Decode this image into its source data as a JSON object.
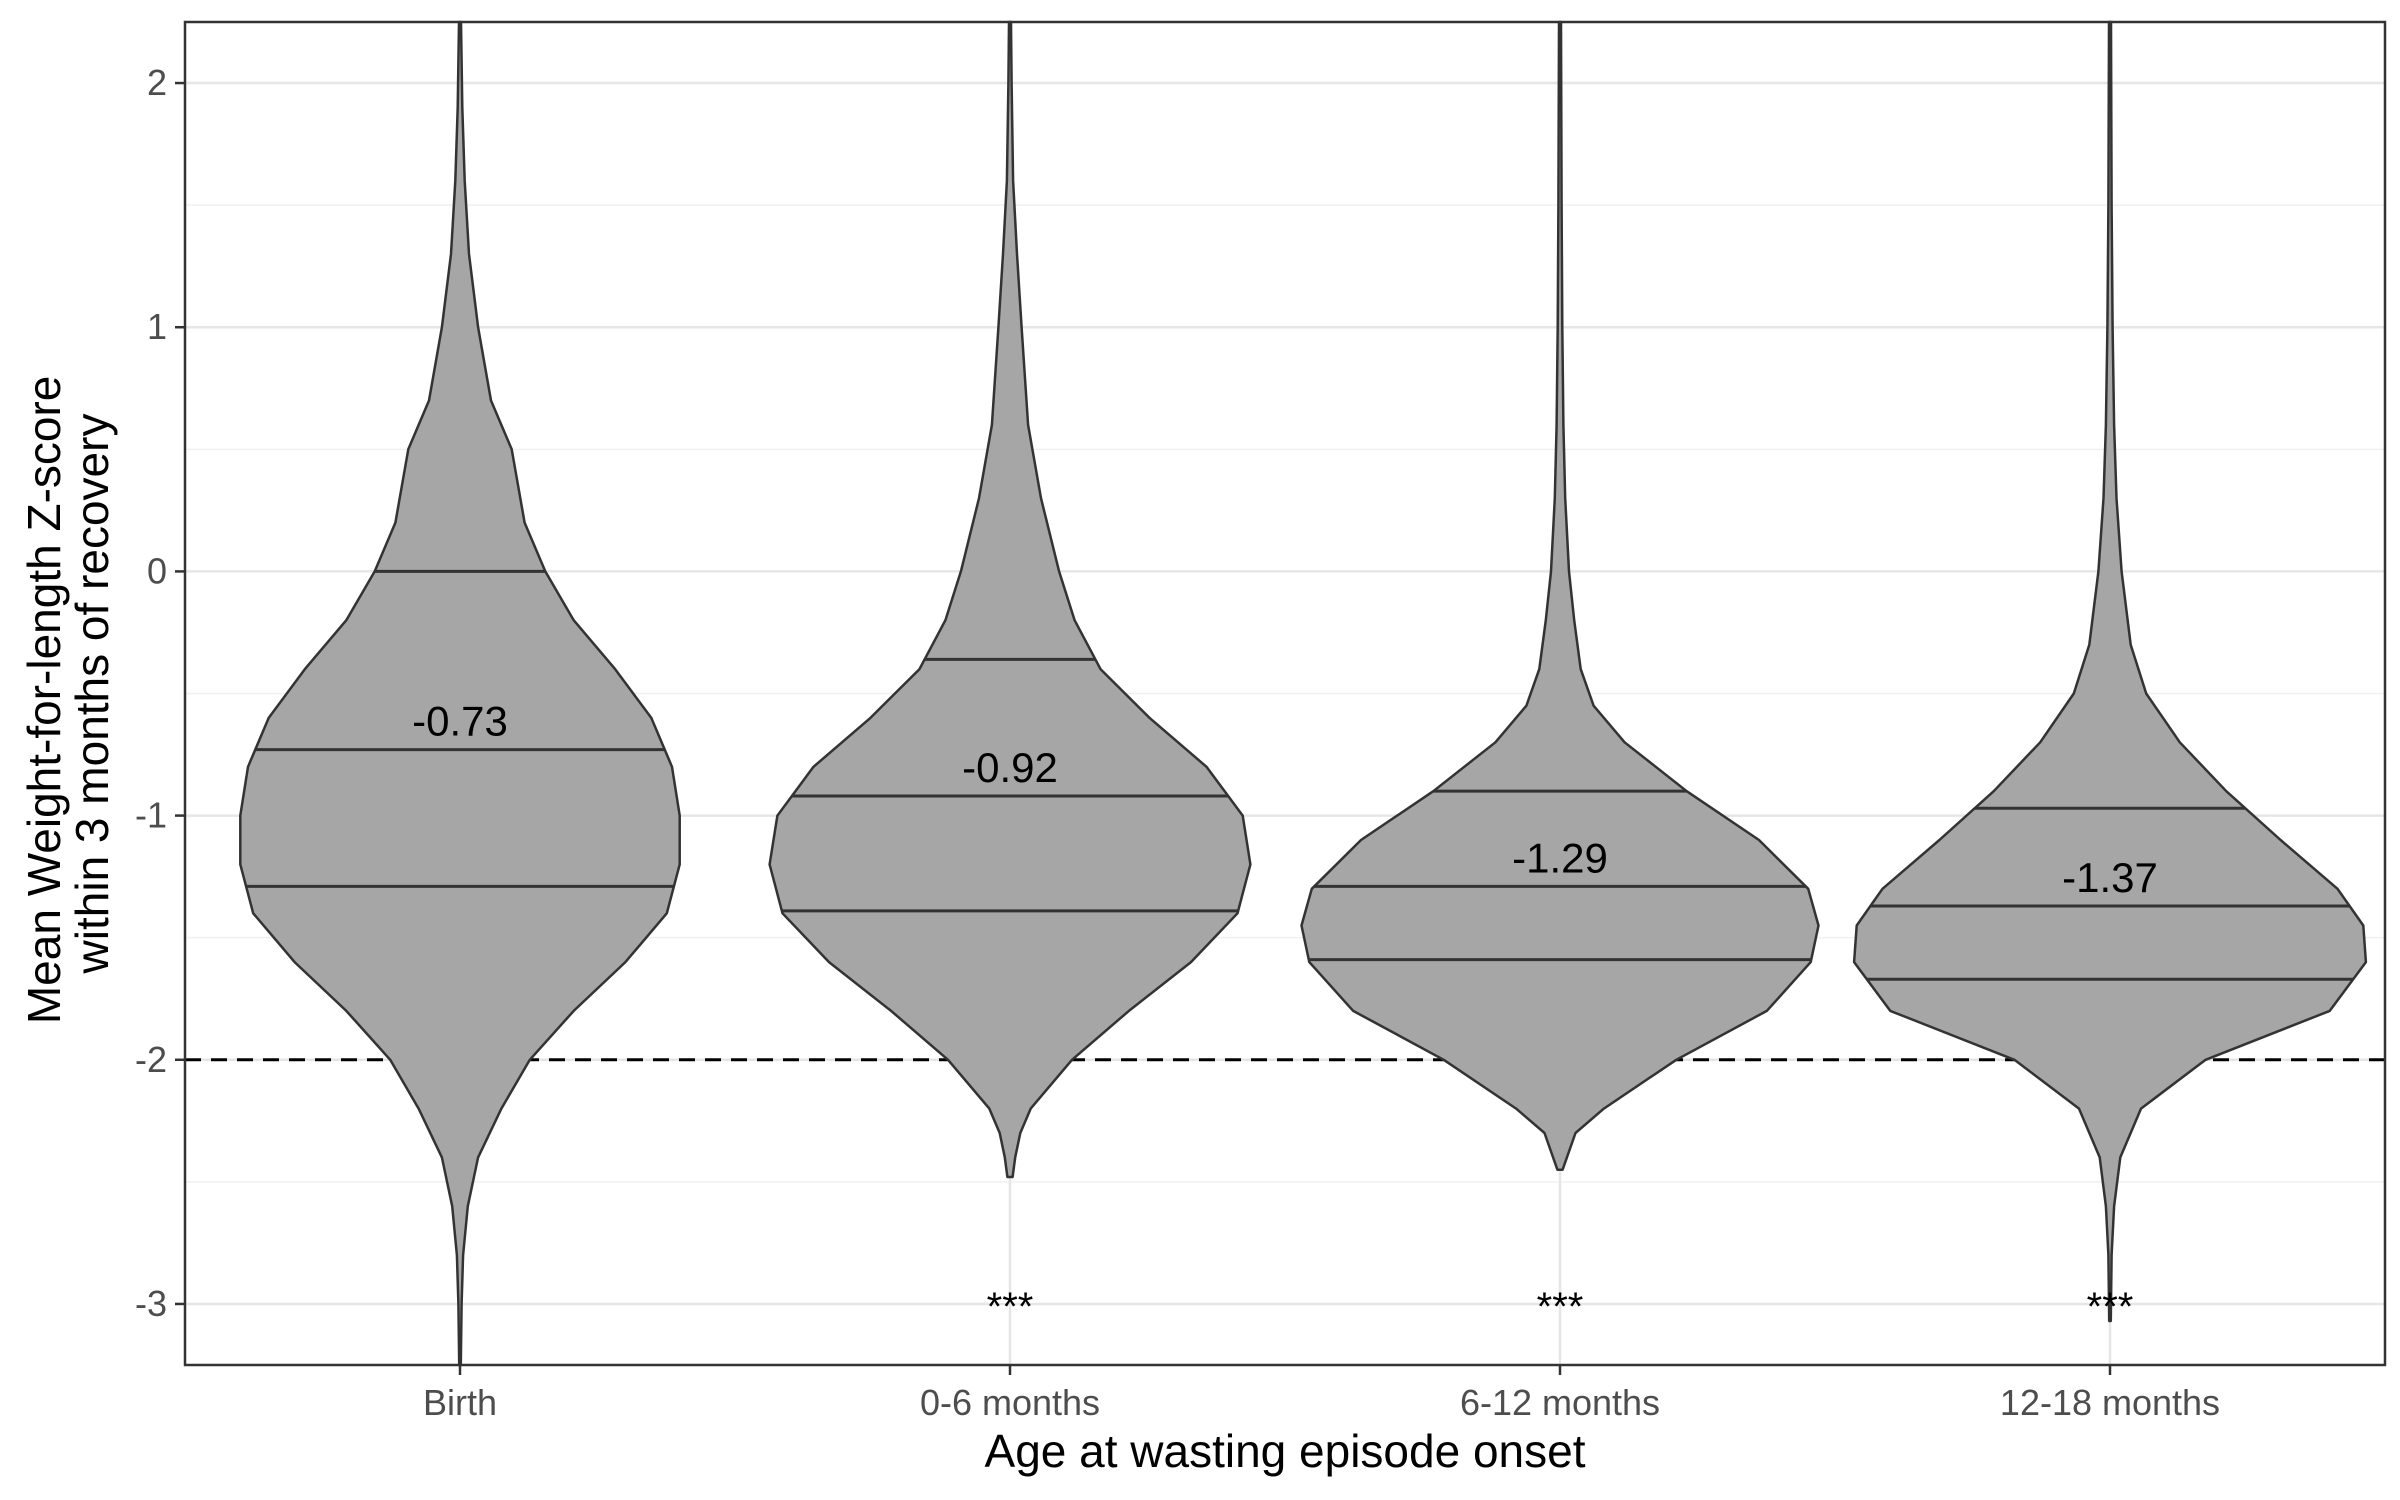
{
  "chart_data": {
    "type": "violin",
    "xlabel": "Age at wasting episode onset",
    "ylabel_lines": [
      "Mean Weight-for-length Z-score",
      "within 3 months of recovery"
    ],
    "ylim": [
      -3.25,
      2.25
    ],
    "yticks": [
      -3,
      -2,
      -1,
      0,
      1,
      2
    ],
    "ytick_labels": [
      "-3",
      "-2",
      "-1",
      "0",
      "1",
      "2"
    ],
    "reference_line": {
      "y": -2,
      "style": "dashed"
    },
    "grid": true,
    "fill_color": "#a6a6a6",
    "line_color": "#333333",
    "categories": [
      "Birth",
      "0-6 months",
      "6-12 months",
      "12-18 months"
    ],
    "groups": [
      {
        "category": "Birth",
        "quartiles": [
          -1.29,
          -0.73,
          0.0
        ],
        "median_label": "-0.73",
        "significance": "",
        "density": [
          [
            -3.25,
            0.003
          ],
          [
            -3.0,
            0.006
          ],
          [
            -2.8,
            0.012
          ],
          [
            -2.6,
            0.03
          ],
          [
            -2.4,
            0.07
          ],
          [
            -2.2,
            0.16
          ],
          [
            -2.0,
            0.27
          ],
          [
            -1.8,
            0.44
          ],
          [
            -1.6,
            0.64
          ],
          [
            -1.4,
            0.8
          ],
          [
            -1.2,
            0.85
          ],
          [
            -1.0,
            0.85
          ],
          [
            -0.8,
            0.82
          ],
          [
            -0.6,
            0.74
          ],
          [
            -0.4,
            0.6
          ],
          [
            -0.2,
            0.44
          ],
          [
            0.0,
            0.33
          ],
          [
            0.2,
            0.25
          ],
          [
            0.5,
            0.2
          ],
          [
            0.7,
            0.12
          ],
          [
            1.0,
            0.07
          ],
          [
            1.3,
            0.035
          ],
          [
            1.6,
            0.018
          ],
          [
            1.9,
            0.009
          ],
          [
            2.25,
            0.004
          ]
        ]
      },
      {
        "category": "0-6 months",
        "quartiles": [
          -1.39,
          -0.92,
          -0.36
        ],
        "median_label": "-0.92",
        "significance": "***",
        "density": [
          [
            -2.48,
            0.01
          ],
          [
            -2.4,
            0.02
          ],
          [
            -2.3,
            0.04
          ],
          [
            -2.2,
            0.08
          ],
          [
            -2.0,
            0.24
          ],
          [
            -1.8,
            0.46
          ],
          [
            -1.6,
            0.7
          ],
          [
            -1.4,
            0.88
          ],
          [
            -1.2,
            0.93
          ],
          [
            -1.0,
            0.9
          ],
          [
            -0.8,
            0.76
          ],
          [
            -0.6,
            0.54
          ],
          [
            -0.4,
            0.35
          ],
          [
            -0.2,
            0.25
          ],
          [
            0.0,
            0.19
          ],
          [
            0.3,
            0.12
          ],
          [
            0.6,
            0.07
          ],
          [
            1.0,
            0.045
          ],
          [
            1.3,
            0.027
          ],
          [
            1.6,
            0.012
          ],
          [
            2.0,
            0.006
          ],
          [
            2.25,
            0.004
          ]
        ]
      },
      {
        "category": "6-12 months",
        "quartiles": [
          -1.59,
          -1.29,
          -0.9
        ],
        "median_label": "-1.29",
        "significance": "***",
        "density": [
          [
            -2.45,
            0.01
          ],
          [
            -2.3,
            0.06
          ],
          [
            -2.2,
            0.17
          ],
          [
            -2.0,
            0.45
          ],
          [
            -1.8,
            0.8
          ],
          [
            -1.6,
            0.97
          ],
          [
            -1.45,
            1.0
          ],
          [
            -1.3,
            0.96
          ],
          [
            -1.1,
            0.77
          ],
          [
            -0.9,
            0.49
          ],
          [
            -0.7,
            0.25
          ],
          [
            -0.55,
            0.13
          ],
          [
            -0.4,
            0.08
          ],
          [
            -0.2,
            0.055
          ],
          [
            0.0,
            0.035
          ],
          [
            0.3,
            0.02
          ],
          [
            0.6,
            0.013
          ],
          [
            1.0,
            0.009
          ],
          [
            1.5,
            0.006
          ],
          [
            2.25,
            0.004
          ]
        ]
      },
      {
        "category": "12-18 months",
        "quartiles": [
          -1.67,
          -1.37,
          -0.97
        ],
        "median_label": "-1.37",
        "significance": "***",
        "density": [
          [
            -3.07,
            0.003
          ],
          [
            -2.8,
            0.006
          ],
          [
            -2.6,
            0.016
          ],
          [
            -2.4,
            0.04
          ],
          [
            -2.2,
            0.12
          ],
          [
            -2.0,
            0.37
          ],
          [
            -1.8,
            0.85
          ],
          [
            -1.6,
            0.99
          ],
          [
            -1.45,
            0.98
          ],
          [
            -1.3,
            0.88
          ],
          [
            -1.1,
            0.66
          ],
          [
            -0.9,
            0.45
          ],
          [
            -0.7,
            0.27
          ],
          [
            -0.5,
            0.14
          ],
          [
            -0.3,
            0.08
          ],
          [
            0.0,
            0.045
          ],
          [
            0.3,
            0.025
          ],
          [
            0.6,
            0.016
          ],
          [
            1.0,
            0.01
          ],
          [
            1.5,
            0.006
          ],
          [
            2.25,
            0.004
          ]
        ]
      }
    ]
  }
}
